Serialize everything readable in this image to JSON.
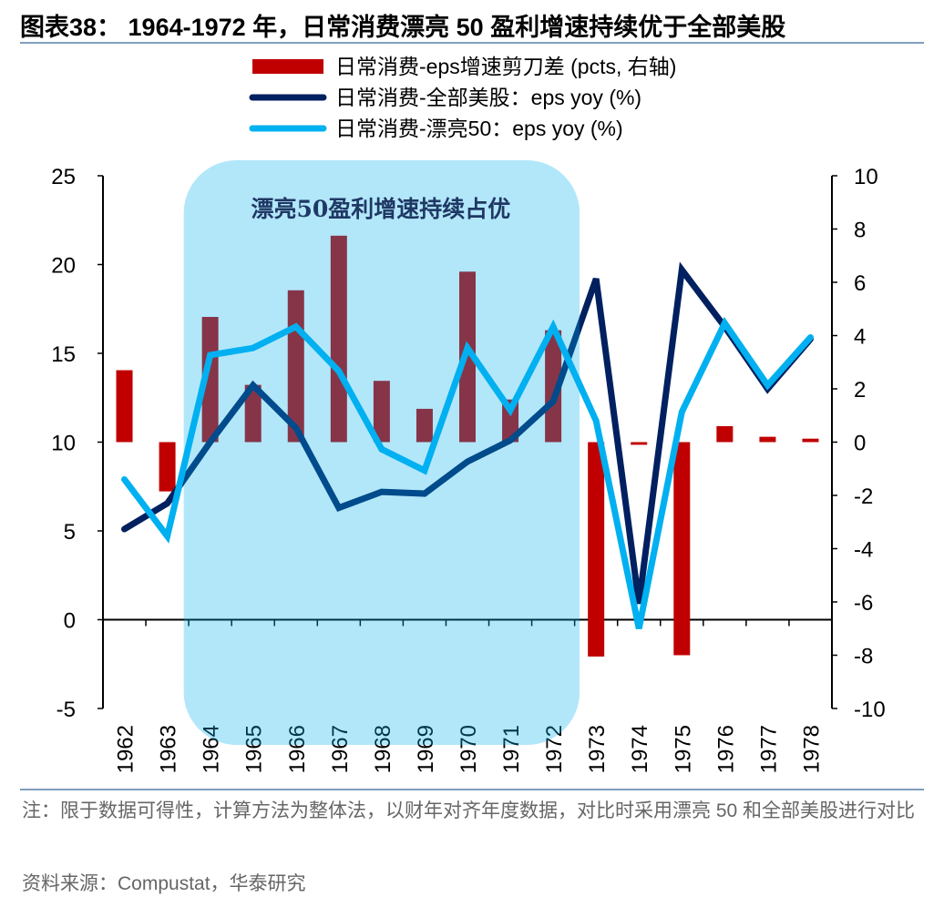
{
  "title": "图表38： 1964-1972 年，日常消费漂亮 50 盈利增速持续优于全部美股",
  "annotation": "漂亮50盈利增速持续占优",
  "note": "注：限于数据可得性，计算方法为整体法，以财年对齐年度数据，对比时采用漂亮 50 和全部美股进行对比",
  "source": "资料来源：Compustat，华泰研究",
  "colors": {
    "bar": "#C00000",
    "all_line": "#002060",
    "nifty_line": "#00B0F0",
    "highlight": "#00B0F0"
  },
  "chart_data": {
    "type": "bar+line",
    "categories": [
      "1962",
      "1963",
      "1964",
      "1965",
      "1966",
      "1967",
      "1968",
      "1969",
      "1970",
      "1971",
      "1972",
      "1973",
      "1974",
      "1975",
      "1976",
      "1977",
      "1978"
    ],
    "left_axis": {
      "ylim": [
        -5,
        25
      ],
      "ticks": [
        "-5",
        "0",
        "5",
        "10",
        "15",
        "20",
        "25"
      ]
    },
    "right_axis": {
      "ylim": [
        -10,
        10
      ],
      "ticks": [
        "-10",
        "-8",
        "-6",
        "-4",
        "-2",
        "0",
        "2",
        "4",
        "6",
        "8",
        "10"
      ]
    },
    "highlight_range": [
      "1964",
      "1972"
    ],
    "legend_position": "top",
    "series": [
      {
        "name": "日常消费-eps增速剪刀差 (pcts, 右轴)",
        "type": "bar",
        "axis": "right",
        "values": [
          2.7,
          -1.85,
          4.7,
          2.15,
          5.7,
          7.75,
          2.3,
          1.25,
          6.4,
          1.6,
          4.2,
          -8.05,
          -0.1,
          -8.0,
          0.6,
          0.2,
          0.13
        ]
      },
      {
        "name": "日常消费-全部美股：eps yoy (%)",
        "type": "line",
        "axis": "left",
        "values": [
          5.1,
          6.55,
          10.0,
          13.2,
          10.8,
          6.3,
          7.2,
          7.1,
          8.9,
          10.1,
          12.3,
          19.2,
          0.9,
          19.7,
          16.5,
          13.0,
          15.8
        ]
      },
      {
        "name": "日常消费-漂亮50：eps yoy (%)",
        "type": "line",
        "axis": "left",
        "values": [
          7.9,
          4.7,
          14.9,
          15.3,
          16.5,
          14.0,
          9.6,
          8.4,
          15.3,
          11.8,
          16.5,
          11.2,
          -0.5,
          11.7,
          16.7,
          13.2,
          15.9
        ]
      }
    ]
  }
}
